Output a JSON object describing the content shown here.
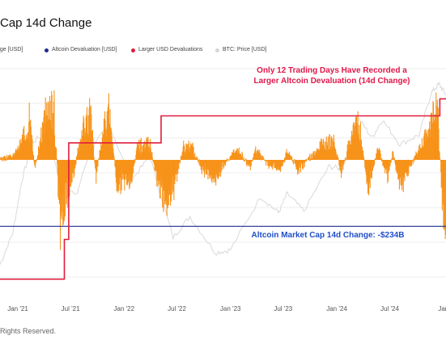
{
  "header": {
    "title": "Cap 14d Change"
  },
  "legend": [
    {
      "label": "nge [USD]",
      "color": "#f7931a"
    },
    {
      "label": "Altcoin Devaluation [USD]",
      "color": "#1f2e8f"
    },
    {
      "label": "Larger USD Devaluations",
      "color": "#e01e3c"
    },
    {
      "label": "BTC: Price [USD]",
      "color": "#d6d6d6"
    }
  ],
  "footer": {
    "text": "Rights Reserved."
  },
  "colors": {
    "bars": "#f7931a",
    "threshold": "#1f2e8f",
    "record": "#e01e3c",
    "btc": "#d9d9d9",
    "annotation_red": "#e0184a",
    "annotation_blue": "#1f4fc9"
  },
  "chart_data": {
    "type": "bar",
    "x_range": [
      "2020-11-01",
      "2025-01-10"
    ],
    "xticks": [
      "Jan '21",
      "Jul '21",
      "Jan '22",
      "Jul '22",
      "Jan '23",
      "Jul '23",
      "Jan '24",
      "Jul '24",
      "Jan"
    ],
    "xtick_dates": [
      "2021-01-01",
      "2021-07-01",
      "2022-01-01",
      "2022-07-01",
      "2023-01-01",
      "2023-07-01",
      "2024-01-01",
      "2024-07-01",
      "2025-01-01"
    ],
    "grid": true,
    "annotations": [
      {
        "text_lines": [
          "Only 12 Trading Days Have Recorded a",
          "Larger Altcoin Devaluation (14d Change)"
        ],
        "color": "#e0184a"
      },
      {
        "text_lines": [
          "Altcoin Market Cap 14d Change: -$234B"
        ],
        "color": "#1f4fc9"
      }
    ],
    "threshold_line": {
      "name": "Altcoin Devaluation [USD]",
      "value": -234
    },
    "record_step": {
      "name": "Larger USD Devaluations",
      "points": [
        [
          "2020-11-01",
          -420
        ],
        [
          "2021-06-10",
          -420
        ],
        [
          "2021-06-10",
          -280
        ],
        [
          "2021-06-25",
          -280
        ],
        [
          "2021-06-25",
          60
        ],
        [
          "2022-05-08",
          60
        ],
        [
          "2022-05-08",
          155
        ],
        [
          "2024-12-20",
          155
        ],
        [
          "2024-12-20",
          215
        ],
        [
          "2025-01-10",
          215
        ]
      ]
    },
    "bar_series": {
      "name": "Altcoin Market Cap 14d Change [USD]",
      "anchors": [
        [
          "2020-11-01",
          0
        ],
        [
          "2020-12-15",
          15
        ],
        [
          "2021-01-10",
          60
        ],
        [
          "2021-02-10",
          160
        ],
        [
          "2021-02-28",
          -40
        ],
        [
          "2021-03-20",
          90
        ],
        [
          "2021-04-15",
          220
        ],
        [
          "2021-05-05",
          180
        ],
        [
          "2021-05-25",
          -250
        ],
        [
          "2021-06-20",
          -120
        ],
        [
          "2021-07-10",
          -60
        ],
        [
          "2021-08-10",
          130
        ],
        [
          "2021-09-05",
          190
        ],
        [
          "2021-09-25",
          -70
        ],
        [
          "2021-10-20",
          120
        ],
        [
          "2021-11-10",
          180
        ],
        [
          "2021-12-05",
          -90
        ],
        [
          "2022-01-10",
          -100
        ],
        [
          "2022-01-25",
          -80
        ],
        [
          "2022-02-15",
          60
        ],
        [
          "2022-03-30",
          55
        ],
        [
          "2022-04-20",
          -60
        ],
        [
          "2022-05-15",
          -160
        ],
        [
          "2022-06-15",
          -140
        ],
        [
          "2022-07-20",
          45
        ],
        [
          "2022-08-20",
          50
        ],
        [
          "2022-09-20",
          -30
        ],
        [
          "2022-11-10",
          -75
        ],
        [
          "2022-12-10",
          -20
        ],
        [
          "2023-01-20",
          45
        ],
        [
          "2023-03-10",
          -30
        ],
        [
          "2023-03-25",
          40
        ],
        [
          "2023-05-10",
          -20
        ],
        [
          "2023-06-20",
          -35
        ],
        [
          "2023-07-15",
          30
        ],
        [
          "2023-08-20",
          -40
        ],
        [
          "2023-09-30",
          10
        ],
        [
          "2023-10-30",
          50
        ],
        [
          "2023-11-15",
          70
        ],
        [
          "2023-12-20",
          80
        ],
        [
          "2024-01-15",
          -60
        ],
        [
          "2024-02-10",
          60
        ],
        [
          "2024-03-10",
          145
        ],
        [
          "2024-03-25",
          90
        ],
        [
          "2024-04-15",
          -120
        ],
        [
          "2024-05-20",
          50
        ],
        [
          "2024-06-20",
          -70
        ],
        [
          "2024-07-10",
          30
        ],
        [
          "2024-08-05",
          -110
        ],
        [
          "2024-09-10",
          -20
        ],
        [
          "2024-10-10",
          40
        ],
        [
          "2024-11-15",
          130
        ],
        [
          "2024-12-01",
          200
        ],
        [
          "2024-12-12",
          170
        ],
        [
          "2024-12-28",
          -200
        ],
        [
          "2025-01-10",
          -234
        ]
      ]
    },
    "btc_series": {
      "name": "BTC: Price [USD]",
      "points": [
        [
          "2020-11-01",
          14000
        ],
        [
          "2020-12-15",
          20000
        ],
        [
          "2021-01-15",
          36000
        ],
        [
          "2021-02-20",
          55000
        ],
        [
          "2021-04-15",
          63000
        ],
        [
          "2021-05-20",
          38000
        ],
        [
          "2021-07-20",
          30000
        ],
        [
          "2021-09-01",
          48000
        ],
        [
          "2021-11-10",
          68000
        ],
        [
          "2022-01-25",
          36000
        ],
        [
          "2022-03-30",
          47000
        ],
        [
          "2022-06-18",
          19000
        ],
        [
          "2022-08-15",
          24000
        ],
        [
          "2022-11-10",
          16000
        ],
        [
          "2023-01-01",
          16500
        ],
        [
          "2023-04-15",
          30000
        ],
        [
          "2023-06-15",
          25000
        ],
        [
          "2023-07-15",
          31000
        ],
        [
          "2023-09-10",
          25500
        ],
        [
          "2023-12-05",
          42000
        ],
        [
          "2024-01-20",
          41000
        ],
        [
          "2024-03-14",
          73000
        ],
        [
          "2024-05-01",
          58000
        ],
        [
          "2024-06-05",
          71000
        ],
        [
          "2024-08-05",
          54000
        ],
        [
          "2024-10-10",
          60000
        ],
        [
          "2024-11-20",
          96000
        ],
        [
          "2024-12-17",
          106000
        ],
        [
          "2025-01-10",
          94000
        ]
      ]
    }
  }
}
